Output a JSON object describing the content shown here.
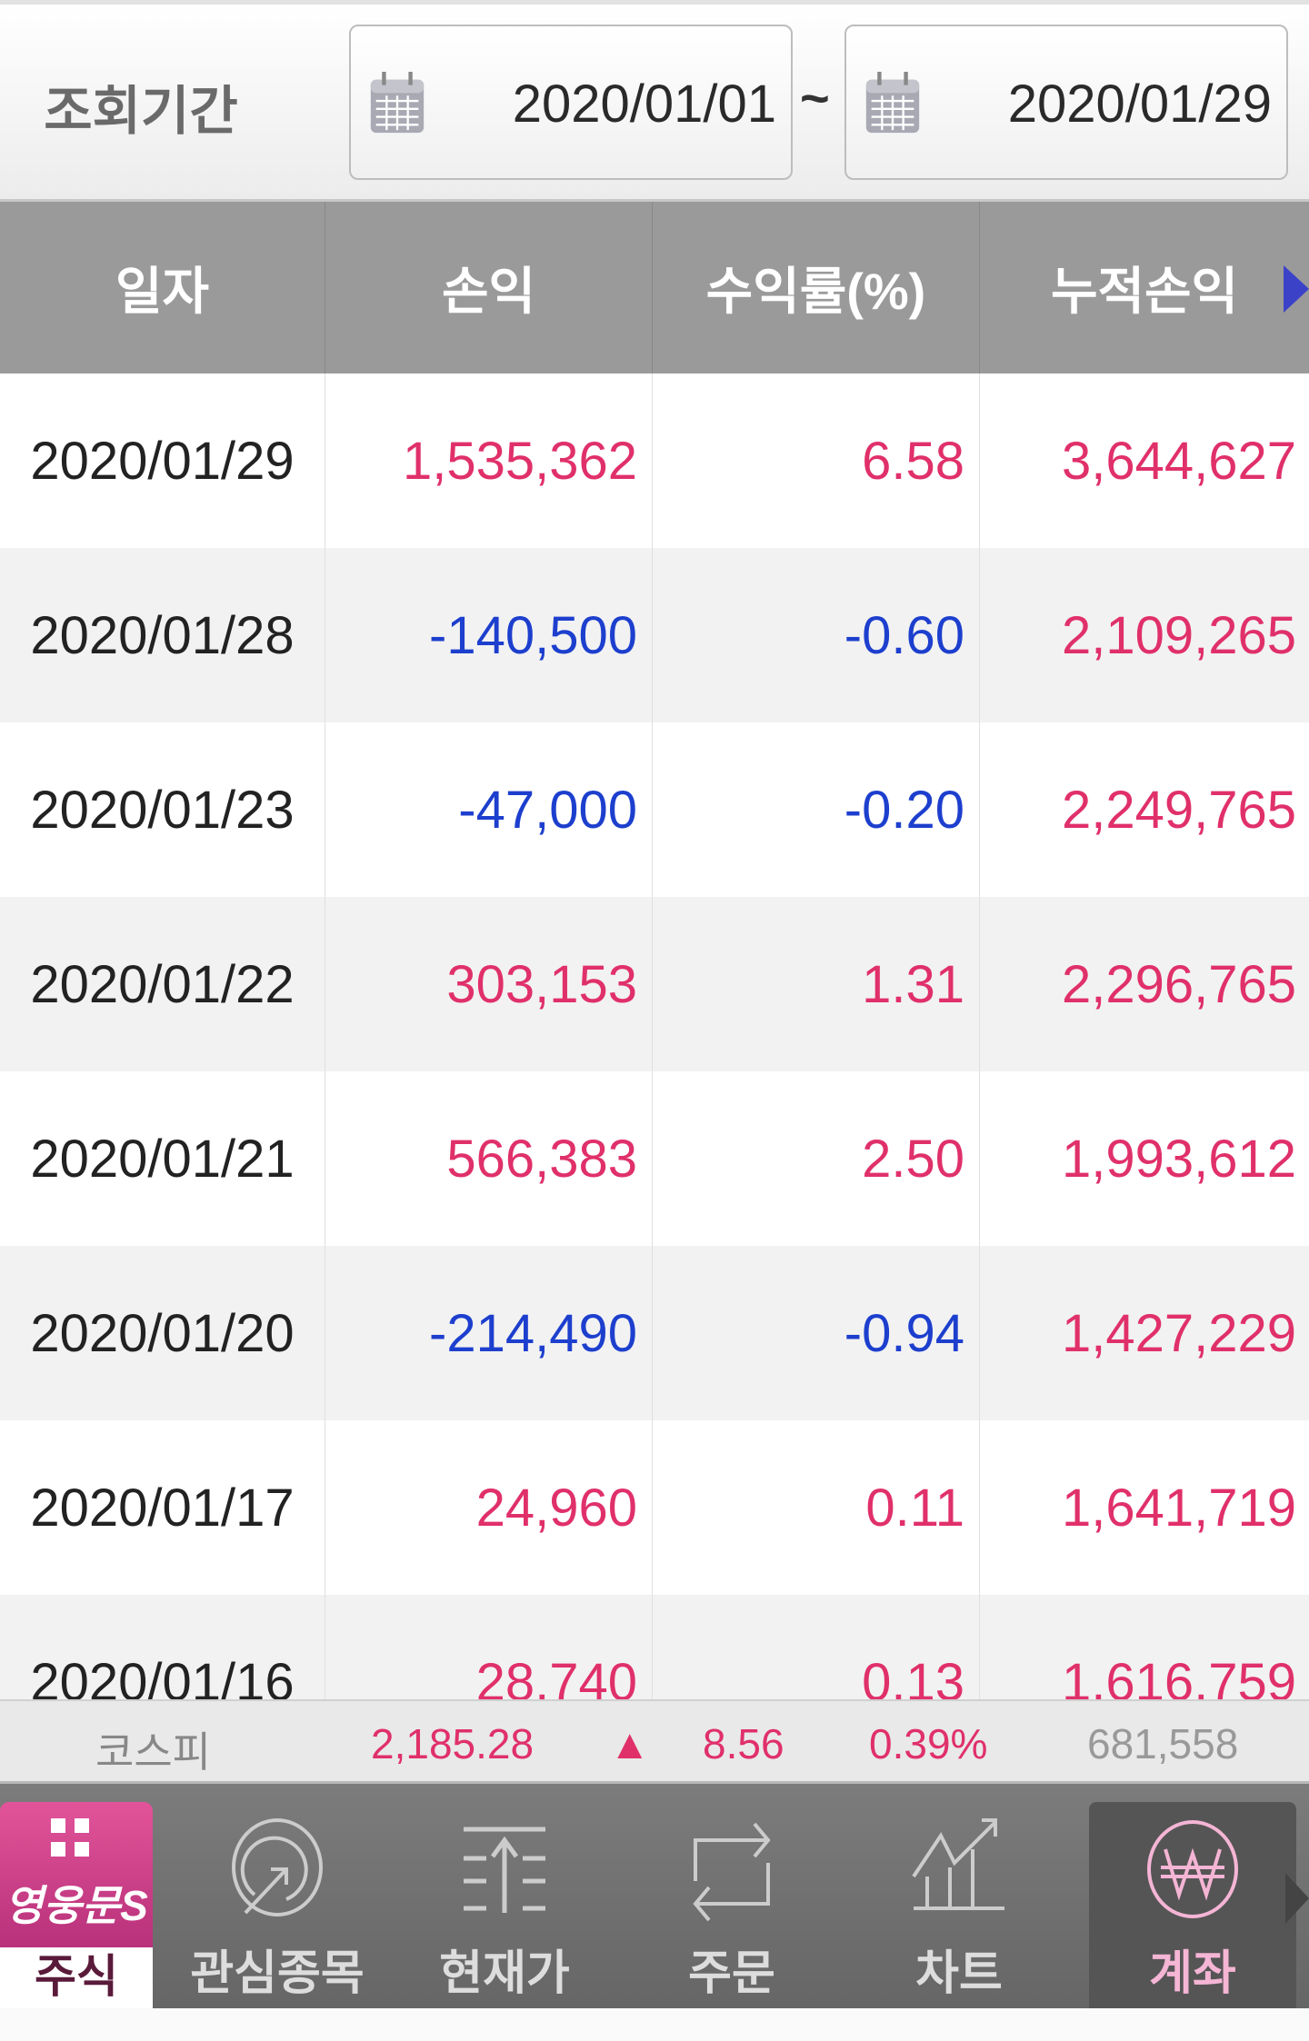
{
  "filter": {
    "label": "조회기간",
    "start_date": "2020/01/01",
    "separator": "~",
    "end_date": "2020/01/29"
  },
  "table": {
    "headers": [
      "일자",
      "손익",
      "수익률(%)",
      "누적손익"
    ],
    "rows": [
      {
        "date": "2020/01/29",
        "pnl": "1,535,362",
        "rate": "6.58",
        "cum": "3,644,627",
        "sign": "pos"
      },
      {
        "date": "2020/01/28",
        "pnl": "-140,500",
        "rate": "-0.60",
        "cum": "2,109,265",
        "sign": "neg"
      },
      {
        "date": "2020/01/23",
        "pnl": "-47,000",
        "rate": "-0.20",
        "cum": "2,249,765",
        "sign": "neg"
      },
      {
        "date": "2020/01/22",
        "pnl": "303,153",
        "rate": "1.31",
        "cum": "2,296,765",
        "sign": "pos"
      },
      {
        "date": "2020/01/21",
        "pnl": "566,383",
        "rate": "2.50",
        "cum": "1,993,612",
        "sign": "pos"
      },
      {
        "date": "2020/01/20",
        "pnl": "-214,490",
        "rate": "-0.94",
        "cum": "1,427,229",
        "sign": "neg"
      },
      {
        "date": "2020/01/17",
        "pnl": "24,960",
        "rate": "0.11",
        "cum": "1,641,719",
        "sign": "pos"
      },
      {
        "date": "2020/01/16",
        "pnl": "28,740",
        "rate": "0.13",
        "cum": "1,616,759",
        "sign": "pos"
      }
    ]
  },
  "ticker": {
    "name": "코스피",
    "price": "2,185.28",
    "direction": "▲",
    "change": "8.56",
    "change_pct": "0.39%",
    "volume": "681,558"
  },
  "nav": {
    "brand": "영웅문S",
    "brand_tab": "주식",
    "items": [
      "관심종목",
      "현재가",
      "주문",
      "차트",
      "계좌"
    ],
    "active": "계좌"
  },
  "colors": {
    "positive": "#e0306a",
    "negative": "#1d3fce",
    "brand": "#c83c86"
  }
}
